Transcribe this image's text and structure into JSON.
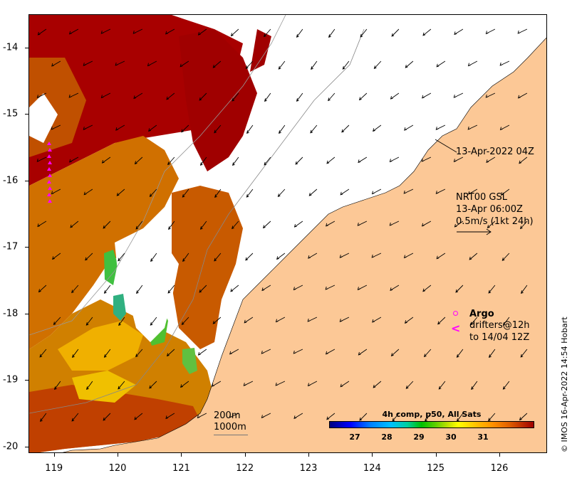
{
  "axes": {
    "x_ticks": [
      "119",
      "120",
      "121",
      "122",
      "123",
      "124",
      "125",
      "126"
    ],
    "x_values": [
      119,
      120,
      121,
      122,
      123,
      124,
      125,
      126
    ],
    "y_ticks": [
      "-14",
      "-15",
      "-16",
      "-17",
      "-18",
      "-19",
      "-20"
    ],
    "y_values": [
      -14,
      -15,
      -16,
      -17,
      -18,
      -19,
      -20
    ],
    "xlim": [
      118.6,
      126.75
    ],
    "ylim": [
      -20.1,
      -13.5
    ]
  },
  "annotations": {
    "timestamp": "13-Apr-2022 04Z",
    "current_model": "NRT00 GSL",
    "current_time": "13-Apr 06:00Z",
    "current_scale": "0.5m/s (1kt 24h)"
  },
  "legend": {
    "argo_label": "Argo",
    "drifters_line1": "drifters@12h",
    "drifters_line2": "to 14/04 12Z",
    "argo_color": "#ff00ff"
  },
  "isobaths": {
    "label_200": "200m",
    "label_1000": "1000m"
  },
  "colorbar": {
    "title": "4h comp, p50, All Sats",
    "ticks": [
      "27",
      "28",
      "29",
      "30",
      "31"
    ],
    "tick_values": [
      27,
      28,
      29,
      30,
      31
    ],
    "range": [
      26.2,
      32.6
    ]
  },
  "credit": "© IMOS 16-Apr-2022 14:54 Hobart",
  "colors": {
    "land": "#fcc896",
    "cloud": "#ffffff",
    "sst_hot": "#a00000",
    "sst_warm": "#d06a00",
    "sst_mid": "#f0b000",
    "sst_cool": "#40c040"
  }
}
